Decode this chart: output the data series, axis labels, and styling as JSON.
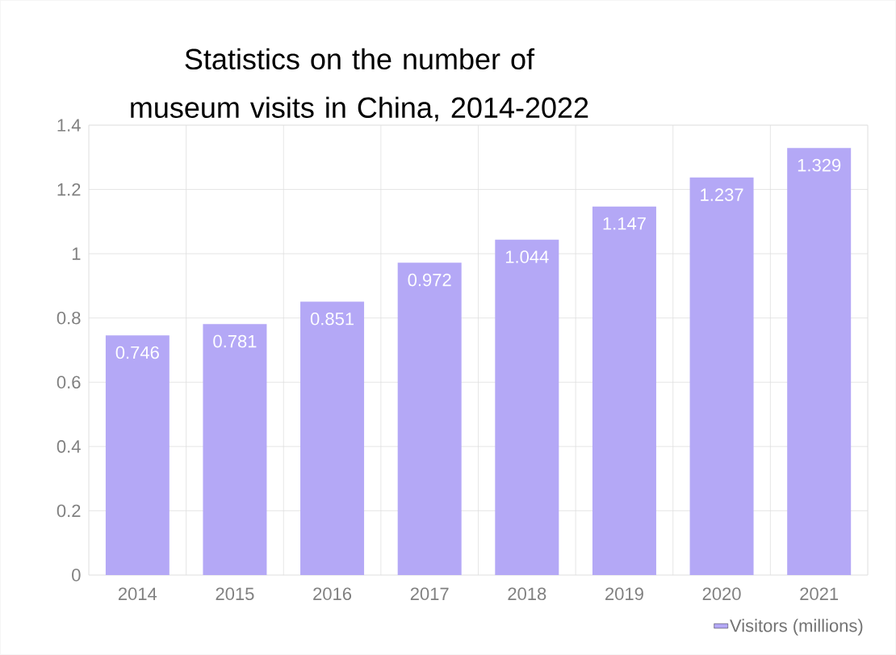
{
  "chart_data": {
    "type": "bar",
    "title": "Statistics on the number of museum visits  in China, 2014-2022",
    "categories": [
      "2014",
      "2015",
      "2016",
      "2017",
      "2018",
      "2019",
      "2020",
      "2021"
    ],
    "series": [
      {
        "name": "Visitors (millions)",
        "color": "#b4a8f6",
        "values": [
          0.746,
          0.781,
          0.851,
          0.972,
          1.044,
          1.147,
          1.237,
          1.329
        ]
      }
    ],
    "ylim": [
      0,
      1.4
    ],
    "yticks": [
      0,
      0.2,
      0.4,
      0.6,
      0.8,
      1,
      1.2,
      1.4
    ],
    "grid": true,
    "legend": "bottom right",
    "data_labels": true
  }
}
